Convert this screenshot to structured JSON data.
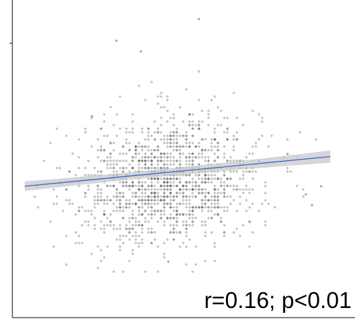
{
  "chart_data": {
    "type": "scatter",
    "title": "",
    "xlabel": "",
    "ylabel": "",
    "x_range": [
      0,
      1
    ],
    "y_range": [
      0,
      1
    ],
    "grid": false,
    "legend": "none",
    "annotation": "r=0.16; p<0.01",
    "point_count": 1400,
    "point_color": "#555555",
    "point_cloud": {
      "center": [
        0.47,
        0.38
      ],
      "spread_x": 0.15,
      "spread_y": 0.12
    },
    "sample_points": [
      {
        "x": 0.04,
        "y": 0.36
      },
      {
        "x": 0.12,
        "y": 0.37
      },
      {
        "x": 0.22,
        "y": 0.62
      },
      {
        "x": 0.3,
        "y": 0.9
      },
      {
        "x": 0.38,
        "y": 0.86
      },
      {
        "x": 0.57,
        "y": 0.98
      },
      {
        "x": 0.47,
        "y": 0.08
      },
      {
        "x": 0.86,
        "y": 0.48
      },
      {
        "x": 0.92,
        "y": 0.33
      },
      {
        "x": 0.97,
        "y": 0.36
      },
      {
        "x": 0.94,
        "y": 0.29
      }
    ],
    "fit_line": {
      "color": "#3b5fcf",
      "band_color": "#c8c8c8",
      "start": {
        "x": 0.0,
        "y": 0.36
      },
      "end": {
        "x": 1.0,
        "y": 0.47
      }
    }
  }
}
